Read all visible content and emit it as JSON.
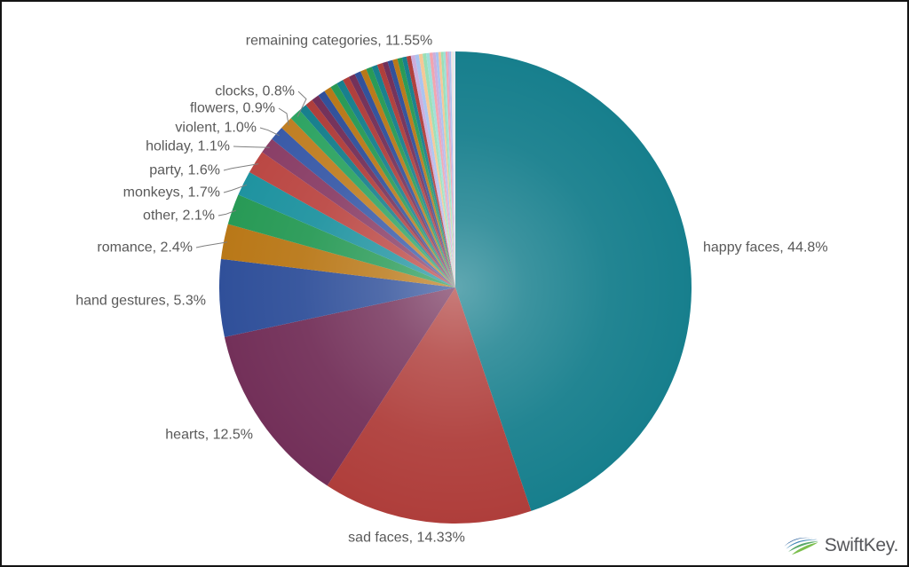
{
  "chart_data": {
    "type": "pie",
    "title": "",
    "start_angle": "12 o'clock",
    "direction": "clockwise",
    "legend": "none",
    "label_format": "<category>, <value>%",
    "label_color": "#595959",
    "leader_line_color": "#7f7f7f",
    "slices": [
      {
        "label": "happy faces",
        "value": 44.8,
        "display": "happy faces, 44.8%",
        "color": "#177f8d"
      },
      {
        "label": "sad faces",
        "value": 14.33,
        "display": "sad faces, 14.33%",
        "color": "#af3e3b"
      },
      {
        "label": "hearts",
        "value": 12.5,
        "display": "hearts, 12.5%",
        "color": "#733059"
      },
      {
        "label": "hand gestures",
        "value": 5.3,
        "display": "hand gestures, 5.3%",
        "color": "#30509a"
      },
      {
        "label": "romance",
        "value": 2.4,
        "display": "romance, 2.4%",
        "color": "#b97818"
      },
      {
        "label": "other",
        "value": 2.1,
        "display": "other, 2.1%",
        "color": "#289a56"
      },
      {
        "label": "monkeys",
        "value": 1.7,
        "display": "monkeys, 1.7%",
        "color": "#1f93a0"
      },
      {
        "label": "party",
        "value": 1.6,
        "display": "party, 1.6%",
        "color": "#bb4844"
      },
      {
        "label": "holiday",
        "value": 1.1,
        "display": "holiday, 1.1%",
        "color": "#8a3f67"
      },
      {
        "label": "violent",
        "value": 1.0,
        "display": "violent, 1.0%",
        "color": "#3a5ba8"
      },
      {
        "label": "flowers",
        "value": 0.9,
        "display": "flowers, 0.9%",
        "color": "#c07f24"
      },
      {
        "label": "clocks",
        "value": 0.8,
        "display": "clocks, 0.8%",
        "color": "#2fa463"
      }
    ],
    "remaining": {
      "label": "remaining categories",
      "value": 11.55,
      "display": "remaining categories, 11.55%",
      "rendered_as": "many thin unlabeled sub-slices fanning to 12 o'clock",
      "sub_slice_count": 38
    },
    "palette_cycle": [
      "#177f8d",
      "#af3e3b",
      "#733059",
      "#30509a",
      "#b97818",
      "#289a56"
    ],
    "pastel_cycle": [
      "#9fdfda",
      "#f2a4ae",
      "#cbaedd",
      "#a9c3f0",
      "#f6c795",
      "#9adfb6"
    ],
    "pale_tail": [
      "#f2dce3",
      "#def2e5",
      "#e1e8f6",
      "#f0e4f2"
    ]
  },
  "branding": {
    "logo_text": "SwiftKey.",
    "swoosh_colors": [
      "#275e9b",
      "#3f87b5",
      "#58a86a",
      "#7cbf4e"
    ]
  }
}
